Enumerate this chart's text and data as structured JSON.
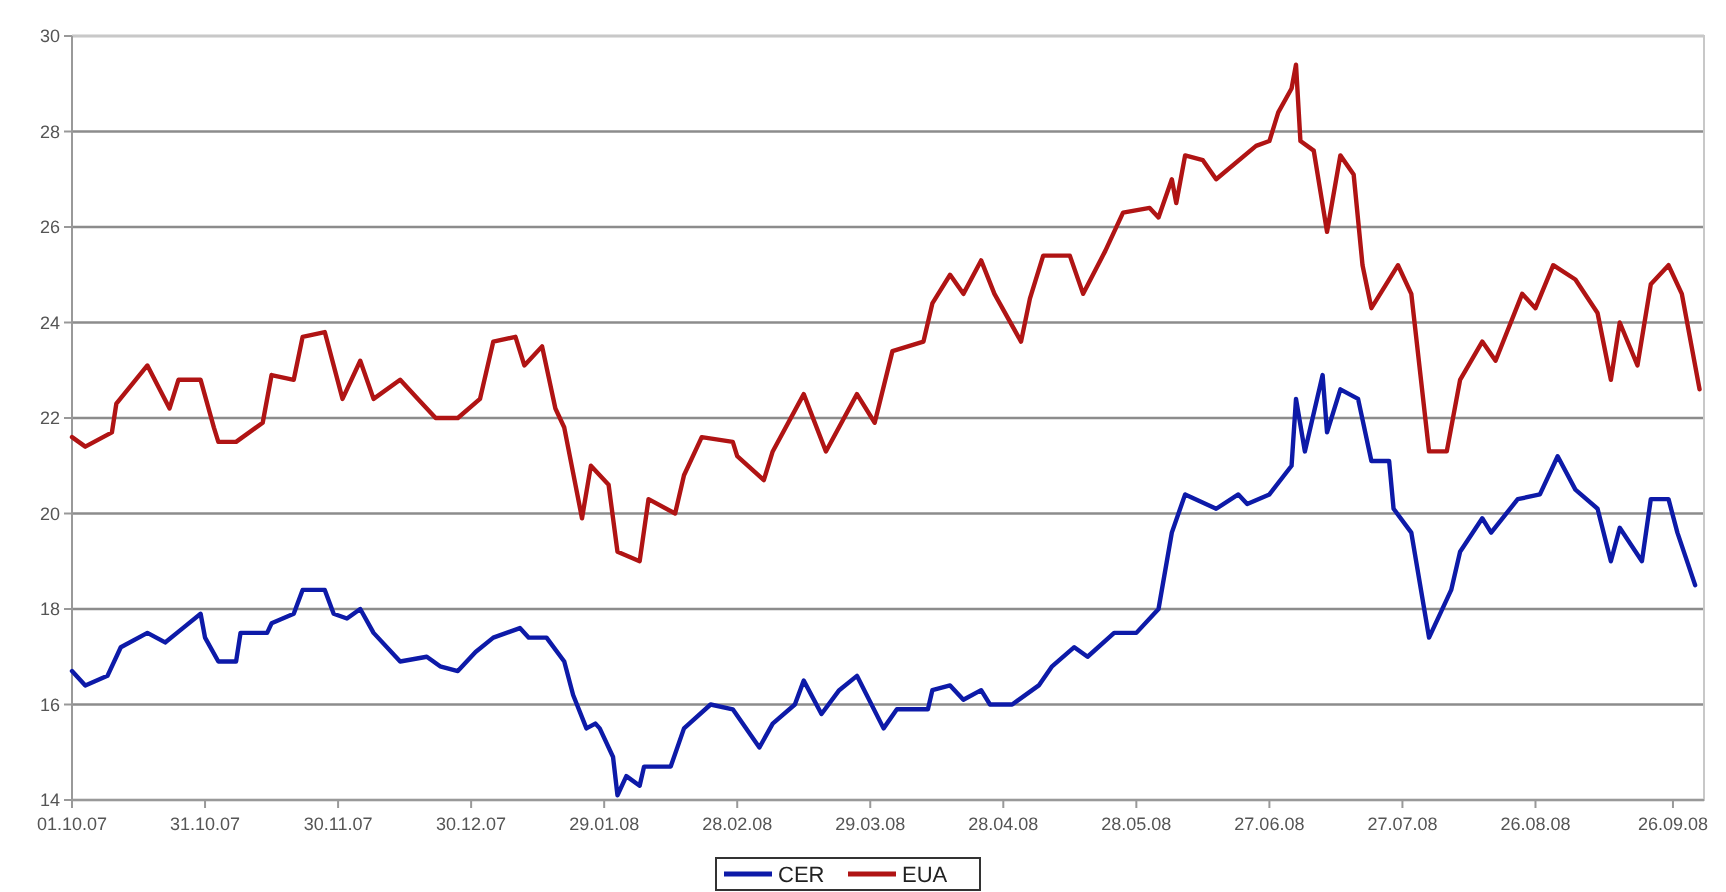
{
  "chart_data": {
    "type": "line",
    "xlim": [
      "2007-10-01",
      "2008-10-03"
    ],
    "ylim": [
      14,
      30
    ],
    "yticks": [
      14,
      16,
      18,
      20,
      22,
      24,
      26,
      28,
      30
    ],
    "xticks": [
      {
        "value": "2007-10-01",
        "label": "01.10.07"
      },
      {
        "value": "2007-10-31",
        "label": "31.10.07"
      },
      {
        "value": "2007-11-30",
        "label": "30.11.07"
      },
      {
        "value": "2007-12-30",
        "label": "30.12.07"
      },
      {
        "value": "2008-01-29",
        "label": "29.01.08"
      },
      {
        "value": "2008-02-28",
        "label": "28.02.08"
      },
      {
        "value": "2008-03-29",
        "label": "29.03.08"
      },
      {
        "value": "2008-04-28",
        "label": "28.04.08"
      },
      {
        "value": "2008-05-28",
        "label": "28.05.08"
      },
      {
        "value": "2008-06-27",
        "label": "27.06.08"
      },
      {
        "value": "2008-07-27",
        "label": "27.07.08"
      },
      {
        "value": "2008-08-26",
        "label": "26.08.08"
      },
      {
        "value": "2008-09-26",
        "label": "26.09.08"
      }
    ],
    "grid": "y",
    "legend": "bottom",
    "marker": "none",
    "line_style": "solid",
    "series": [
      {
        "name": "CER",
        "color": "#0d1aa8",
        "x": [
          "2007-10-01",
          "2007-10-04",
          "2007-10-09",
          "2007-10-12",
          "2007-10-18",
          "2007-10-22",
          "2007-10-26",
          "2007-10-30",
          "2007-10-31",
          "2007-11-03",
          "2007-11-07",
          "2007-11-08",
          "2007-11-14",
          "2007-11-15",
          "2007-11-20",
          "2007-11-22",
          "2007-11-27",
          "2007-11-29",
          "2007-12-02",
          "2007-12-05",
          "2007-12-08",
          "2007-12-14",
          "2007-12-20",
          "2007-12-23",
          "2007-12-27",
          "2007-12-31",
          "2008-01-04",
          "2008-01-10",
          "2008-01-12",
          "2008-01-16",
          "2008-01-20",
          "2008-01-22",
          "2008-01-25",
          "2008-01-27",
          "2008-01-28",
          "2008-01-31",
          "2008-02-01",
          "2008-02-03",
          "2008-02-06",
          "2008-02-07",
          "2008-02-13",
          "2008-02-16",
          "2008-02-22",
          "2008-02-27",
          "2008-03-04",
          "2008-03-07",
          "2008-03-12",
          "2008-03-14",
          "2008-03-18",
          "2008-03-22",
          "2008-03-26",
          "2008-04-01",
          "2008-04-04",
          "2008-04-11",
          "2008-04-12",
          "2008-04-16",
          "2008-04-19",
          "2008-04-23",
          "2008-04-25",
          "2008-04-30",
          "2008-05-06",
          "2008-05-09",
          "2008-05-14",
          "2008-05-17",
          "2008-05-23",
          "2008-05-28",
          "2008-06-02",
          "2008-06-05",
          "2008-06-08",
          "2008-06-15",
          "2008-06-20",
          "2008-06-22",
          "2008-06-27",
          "2008-07-02",
          "2008-07-03",
          "2008-07-05",
          "2008-07-09",
          "2008-07-10",
          "2008-07-13",
          "2008-07-17",
          "2008-07-20",
          "2008-07-24",
          "2008-07-25",
          "2008-07-29",
          "2008-08-02",
          "2008-08-07",
          "2008-08-09",
          "2008-08-14",
          "2008-08-16",
          "2008-08-22",
          "2008-08-27",
          "2008-08-31",
          "2008-09-04",
          "2008-09-09",
          "2008-09-12",
          "2008-09-14",
          "2008-09-19",
          "2008-09-21",
          "2008-09-25",
          "2008-09-27",
          "2008-10-01"
        ],
        "values": [
          16.7,
          16.4,
          16.6,
          17.2,
          17.5,
          17.3,
          17.6,
          17.9,
          17.4,
          16.9,
          16.9,
          17.5,
          17.5,
          17.7,
          17.9,
          18.4,
          18.4,
          17.9,
          17.8,
          18.0,
          17.5,
          16.9,
          17.0,
          16.8,
          16.7,
          17.1,
          17.4,
          17.6,
          17.4,
          17.4,
          16.9,
          16.2,
          15.5,
          15.6,
          15.5,
          14.9,
          14.1,
          14.5,
          14.3,
          14.7,
          14.7,
          15.5,
          16.0,
          15.9,
          15.1,
          15.6,
          16.0,
          16.5,
          15.8,
          16.3,
          16.6,
          15.5,
          15.9,
          15.9,
          16.3,
          16.4,
          16.1,
          16.3,
          16.0,
          16.0,
          16.4,
          16.8,
          17.2,
          17.0,
          17.5,
          17.5,
          18.0,
          19.6,
          20.4,
          20.1,
          20.4,
          20.2,
          20.4,
          21.0,
          22.4,
          21.3,
          22.9,
          21.7,
          22.6,
          22.4,
          21.1,
          21.1,
          20.1,
          19.6,
          17.4,
          18.4,
          19.2,
          19.9,
          19.6,
          20.3,
          20.4,
          21.2,
          20.5,
          20.1,
          19.0,
          19.7,
          19.0,
          20.3,
          20.3,
          19.6,
          18.5
        ]
      },
      {
        "name": "EUA",
        "color": "#b01414",
        "x": [
          "2007-10-01",
          "2007-10-04",
          "2007-10-10",
          "2007-10-11",
          "2007-10-18",
          "2007-10-23",
          "2007-10-25",
          "2007-10-30",
          "2007-11-02",
          "2007-11-03",
          "2007-11-07",
          "2007-11-13",
          "2007-11-15",
          "2007-11-20",
          "2007-11-22",
          "2007-11-27",
          "2007-12-01",
          "2007-12-05",
          "2007-12-08",
          "2007-12-14",
          "2007-12-18",
          "2007-12-22",
          "2007-12-27",
          "2008-01-01",
          "2008-01-04",
          "2008-01-09",
          "2008-01-11",
          "2008-01-15",
          "2008-01-18",
          "2008-01-20",
          "2008-01-24",
          "2008-01-26",
          "2008-01-30",
          "2008-02-01",
          "2008-02-06",
          "2008-02-08",
          "2008-02-14",
          "2008-02-16",
          "2008-02-20",
          "2008-02-27",
          "2008-02-28",
          "2008-03-05",
          "2008-03-07",
          "2008-03-14",
          "2008-03-19",
          "2008-03-26",
          "2008-03-30",
          "2008-04-03",
          "2008-04-10",
          "2008-04-12",
          "2008-04-16",
          "2008-04-19",
          "2008-04-23",
          "2008-04-26",
          "2008-05-02",
          "2008-05-04",
          "2008-05-07",
          "2008-05-13",
          "2008-05-16",
          "2008-05-21",
          "2008-05-25",
          "2008-05-31",
          "2008-06-02",
          "2008-06-05",
          "2008-06-06",
          "2008-06-08",
          "2008-06-12",
          "2008-06-15",
          "2008-06-24",
          "2008-06-27",
          "2008-06-29",
          "2008-07-02",
          "2008-07-03",
          "2008-07-04",
          "2008-07-07",
          "2008-07-10",
          "2008-07-13",
          "2008-07-16",
          "2008-07-18",
          "2008-07-20",
          "2008-07-26",
          "2008-07-29",
          "2008-08-02",
          "2008-08-06",
          "2008-08-09",
          "2008-08-14",
          "2008-08-17",
          "2008-08-23",
          "2008-08-26",
          "2008-08-30",
          "2008-09-04",
          "2008-09-09",
          "2008-09-12",
          "2008-09-14",
          "2008-09-18",
          "2008-09-21",
          "2008-09-25",
          "2008-09-28",
          "2008-10-02"
        ],
        "values": [
          21.6,
          21.4,
          21.7,
          22.3,
          23.1,
          22.2,
          22.8,
          22.8,
          21.8,
          21.5,
          21.5,
          21.9,
          22.9,
          22.8,
          23.7,
          23.8,
          22.4,
          23.2,
          22.4,
          22.8,
          22.4,
          22.0,
          22.0,
          22.4,
          23.6,
          23.7,
          23.1,
          23.5,
          22.2,
          21.8,
          19.9,
          21.0,
          20.6,
          19.2,
          19.0,
          20.3,
          20.0,
          20.8,
          21.6,
          21.5,
          21.2,
          20.7,
          21.3,
          22.5,
          21.3,
          22.5,
          21.9,
          23.4,
          23.6,
          24.4,
          25.0,
          24.6,
          25.3,
          24.6,
          23.6,
          24.5,
          25.4,
          25.4,
          24.6,
          25.5,
          26.3,
          26.4,
          26.2,
          27.0,
          26.5,
          27.5,
          27.4,
          27.0,
          27.7,
          27.8,
          28.4,
          28.9,
          29.4,
          27.8,
          27.6,
          25.9,
          27.5,
          27.1,
          25.2,
          24.3,
          25.2,
          24.6,
          21.3,
          21.3,
          22.8,
          23.6,
          23.2,
          24.6,
          24.3,
          25.2,
          24.9,
          24.2,
          22.8,
          24.0,
          23.1,
          24.8,
          25.2,
          24.6,
          22.6
        ]
      }
    ]
  }
}
